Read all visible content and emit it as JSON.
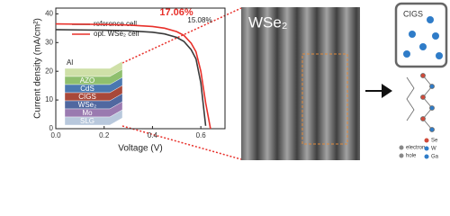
{
  "chart_data": {
    "type": "line",
    "x_label": "Voltage (V)",
    "y_label": "Current density (mA/cm²)",
    "x": [
      0,
      0.1,
      0.2,
      0.3,
      0.4,
      0.45,
      0.5,
      0.53,
      0.56,
      0.58,
      0.6,
      0.62,
      0.64
    ],
    "series": [
      {
        "name": "reference cell",
        "color": "#3a3a3a",
        "values": [
          34.5,
          34.4,
          34.3,
          34.1,
          33.6,
          33.0,
          31.8,
          30.4,
          27.5,
          24.3,
          16,
          1,
          null
        ]
      },
      {
        "name": "opt. WSe₂ cell",
        "color": "#e8302a",
        "values": [
          36.5,
          36.4,
          36.3,
          36.1,
          35.6,
          35.0,
          33.8,
          32.5,
          29.8,
          26.8,
          20,
          9,
          0
        ]
      }
    ],
    "xlim": [
      0,
      0.7
    ],
    "xticks": [
      {
        "value": 0,
        "label": "0.0"
      },
      0.2,
      0.4,
      0.6
    ],
    "ylim": [
      0,
      42
    ],
    "yticks": [
      0,
      10,
      20,
      30,
      40
    ],
    "annotations": [
      "17.06%",
      "15.08%"
    ]
  },
  "inset_layers": [
    "Al",
    "AZO",
    "CdS",
    "CIGS",
    "WSe₂",
    "Mo",
    "SLG"
  ],
  "tem_label": "WSe₂",
  "schematic": {
    "title": "CIGS",
    "legend": [
      "electron",
      "hole",
      "Se",
      "W",
      "Ga"
    ]
  }
}
